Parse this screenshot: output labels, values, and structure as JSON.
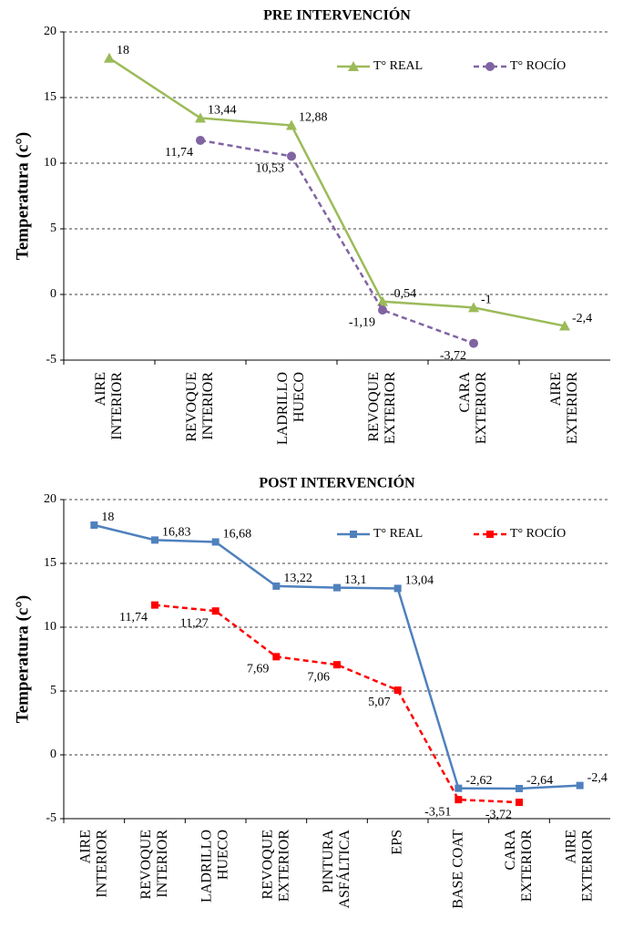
{
  "chart_data": [
    {
      "type": "line",
      "title": "PRE INTERVENCIÓN",
      "y_label": "Temperatura (c°)",
      "categories": [
        "AIRE\nINTERIOR",
        "REVOQUE\nINTERIOR",
        "LADRILLO\nHUECO",
        "REVOQUE\nEXTERIOR",
        "CARA\nEXTERIOR",
        "AIRE\nEXTERIOR"
      ],
      "series": [
        {
          "name": "T° REAL",
          "color": "#9bbb59",
          "marker": "triangle",
          "dashed": false,
          "values": [
            18,
            13.44,
            12.88,
            -0.54,
            -1,
            -2.4
          ],
          "value_labels": [
            "18",
            "13,44",
            "12,88",
            "-0,54",
            "-1",
            "-2,4"
          ]
        },
        {
          "name": "T° ROCÍO",
          "color": "#8064a2",
          "marker": "circle",
          "dashed": true,
          "values": [
            null,
            11.74,
            10.53,
            -1.19,
            -3.72,
            null
          ],
          "value_labels": [
            null,
            "11,74",
            "10,53",
            "-1,19",
            "-3,72",
            null
          ]
        }
      ],
      "ylim": [
        -5,
        20
      ],
      "yticks": [
        -5,
        0,
        5,
        10,
        15,
        20
      ],
      "grid": true,
      "legend": "top-right"
    },
    {
      "type": "line",
      "title": "POST INTERVENCIÓN",
      "y_label": "Temperatura (c°)",
      "categories": [
        "AIRE\nINTERIOR",
        "REVOQUE\nINTERIOR",
        "LADRILLO\nHUECO",
        "REVOQUE\nEXTERIOR",
        "PINTURA\nASFÁLTICA",
        "EPS",
        "BASE COAT",
        "CARA\nEXTERIOR",
        "AIRE\nEXTERIOR"
      ],
      "series": [
        {
          "name": "T° REAL",
          "color": "#4f81bd",
          "marker": "square",
          "dashed": false,
          "values": [
            18,
            16.83,
            16.68,
            13.22,
            13.1,
            13.04,
            -2.62,
            -2.64,
            -2.4
          ],
          "value_labels": [
            "18",
            "16,83",
            "16,68",
            "13,22",
            "13,1",
            "13,04",
            "-2,62",
            "-2,64",
            "-2,4"
          ]
        },
        {
          "name": "T° ROCÍO",
          "color": "#ff0000",
          "marker": "square",
          "dashed": true,
          "values": [
            null,
            11.74,
            11.27,
            7.69,
            7.06,
            5.07,
            -3.51,
            -3.72,
            null
          ],
          "value_labels": [
            null,
            "11,74",
            "11,27",
            "7,69",
            "7,06",
            "5,07",
            "-3,51",
            "-3,72",
            null
          ]
        }
      ],
      "ylim": [
        -5,
        20
      ],
      "yticks": [
        -5,
        0,
        5,
        10,
        15,
        20
      ],
      "grid": true,
      "legend": "top-right"
    }
  ]
}
